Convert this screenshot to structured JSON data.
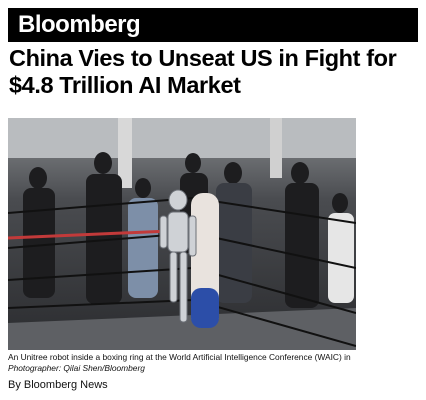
{
  "header": {
    "logo": "Bloomberg"
  },
  "article": {
    "headline": "China Vies to Unseat US in Fight for $4.8 Trillion AI Market",
    "image": {
      "caption": "An Unitree robot inside a boxing ring at the World Artificial Intelligence Conference (WAIC) in",
      "credit_label": "Photographer:",
      "credit": "Qilai Shen/Bloomberg"
    },
    "byline": "By Bloomberg News"
  }
}
